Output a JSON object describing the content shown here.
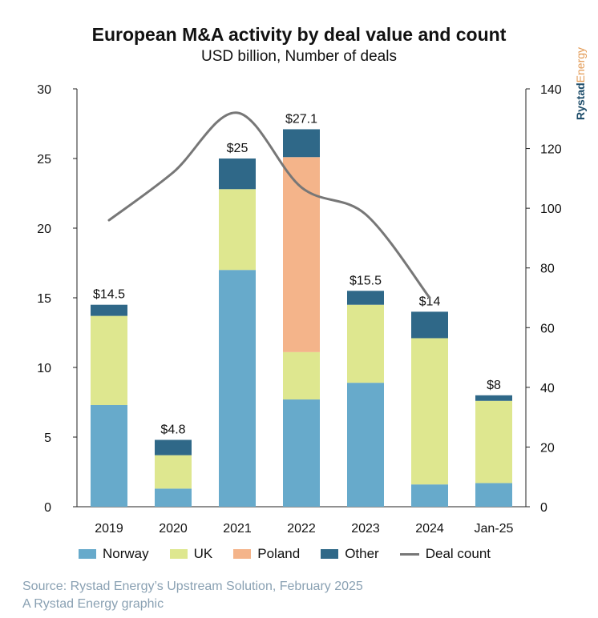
{
  "chart_data": {
    "type": "bar",
    "stacked": true,
    "title": "European M&A activity by deal value and count",
    "subtitle": "USD billion, Number of deals",
    "categories": [
      "2019",
      "2020",
      "2021",
      "2022",
      "2023",
      "2024",
      "Jan-25"
    ],
    "series": [
      {
        "name": "Norway",
        "color": "#67aacb",
        "values": [
          7.3,
          1.3,
          17.0,
          7.7,
          8.9,
          1.6,
          1.7
        ]
      },
      {
        "name": "UK",
        "color": "#dee78f",
        "values": [
          6.4,
          2.4,
          5.8,
          3.4,
          5.6,
          10.5,
          5.9
        ]
      },
      {
        "name": "Poland",
        "color": "#f4b48a",
        "values": [
          0,
          0,
          0,
          14.0,
          0,
          0,
          0
        ]
      },
      {
        "name": "Other",
        "color": "#2f6888",
        "values": [
          0.8,
          1.1,
          2.2,
          2.0,
          1.0,
          1.9,
          0.4
        ]
      }
    ],
    "totals_labels": [
      "$14.5",
      "$4.8",
      "$25",
      "$27.1",
      "$15.5",
      "$14",
      "$8"
    ],
    "line_series": {
      "name": "Deal count",
      "color": "#777777",
      "axis": "right",
      "x_categories": [
        "2019",
        "2020",
        "2021",
        "2022",
        "2023",
        "2024"
      ],
      "values": [
        96,
        112,
        132,
        107,
        98,
        70
      ]
    },
    "ylim": [
      0,
      30
    ],
    "yticks": [
      0,
      5,
      10,
      15,
      20,
      25,
      30
    ],
    "y2lim": [
      0,
      140
    ],
    "y2ticks": [
      0,
      20,
      40,
      60,
      80,
      100,
      120,
      140
    ],
    "ylabel": "USD billion",
    "y2label": "Number of deals",
    "legend_position": "bottom"
  },
  "brand": {
    "part1": "Rystad",
    "part2": "Energy"
  },
  "source": {
    "line1": "Source: Rystad Energy’s Upstream Solution, February 2025",
    "line2": "A Rystad Energy graphic"
  }
}
